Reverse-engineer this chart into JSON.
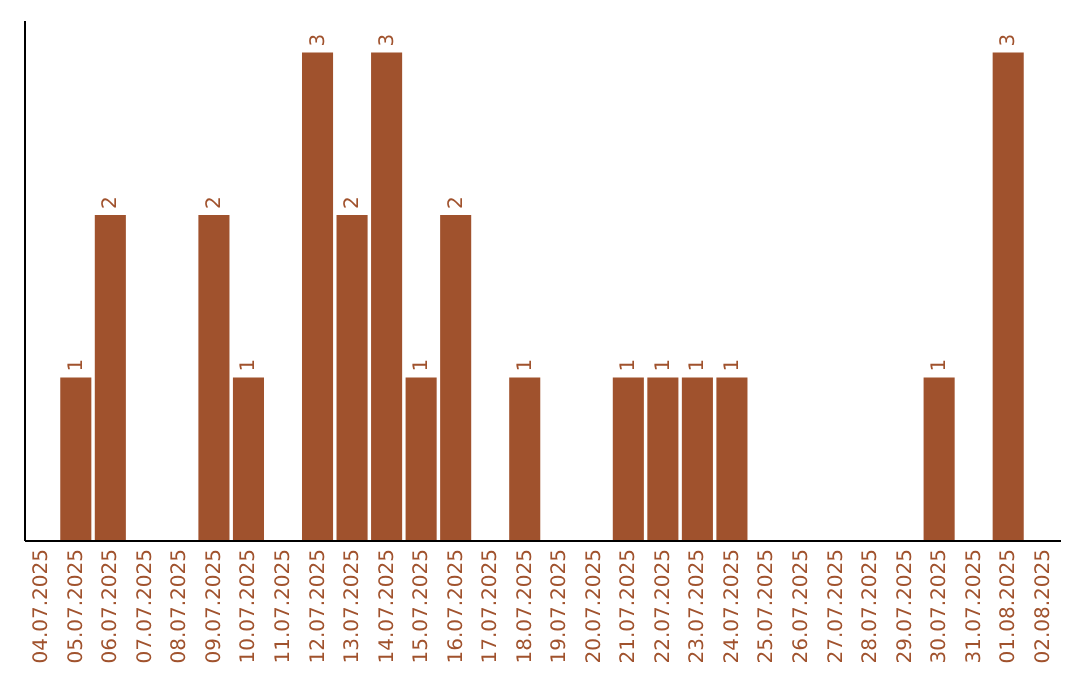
{
  "chart_data": {
    "type": "bar",
    "categories": [
      "04.07.2025",
      "05.07.2025",
      "06.07.2025",
      "07.07.2025",
      "08.07.2025",
      "09.07.2025",
      "10.07.2025",
      "11.07.2025",
      "12.07.2025",
      "13.07.2025",
      "14.07.2025",
      "15.07.2025",
      "16.07.2025",
      "17.07.2025",
      "18.07.2025",
      "19.07.2025",
      "20.07.2025",
      "21.07.2025",
      "22.07.2025",
      "23.07.2025",
      "24.07.2025",
      "25.07.2025",
      "26.07.2025",
      "27.07.2025",
      "28.07.2025",
      "29.07.2025",
      "30.07.2025",
      "31.07.2025",
      "01.08.2025",
      "02.08.2025"
    ],
    "values": [
      0,
      1,
      2,
      0,
      0,
      2,
      1,
      0,
      3,
      2,
      3,
      1,
      2,
      0,
      1,
      0,
      0,
      1,
      1,
      1,
      1,
      0,
      0,
      0,
      0,
      0,
      1,
      0,
      3,
      0
    ],
    "value_labels": [
      null,
      "1",
      "2",
      null,
      null,
      "2",
      "1",
      null,
      "3",
      "2",
      "3",
      "1",
      "2",
      null,
      "1",
      null,
      null,
      "1",
      "1",
      "1",
      "1",
      null,
      null,
      null,
      null,
      null,
      "1",
      null,
      "3",
      null
    ],
    "color": "#a0522d",
    "ylim": [
      0,
      3.2
    ],
    "tick_labels": "x"
  }
}
